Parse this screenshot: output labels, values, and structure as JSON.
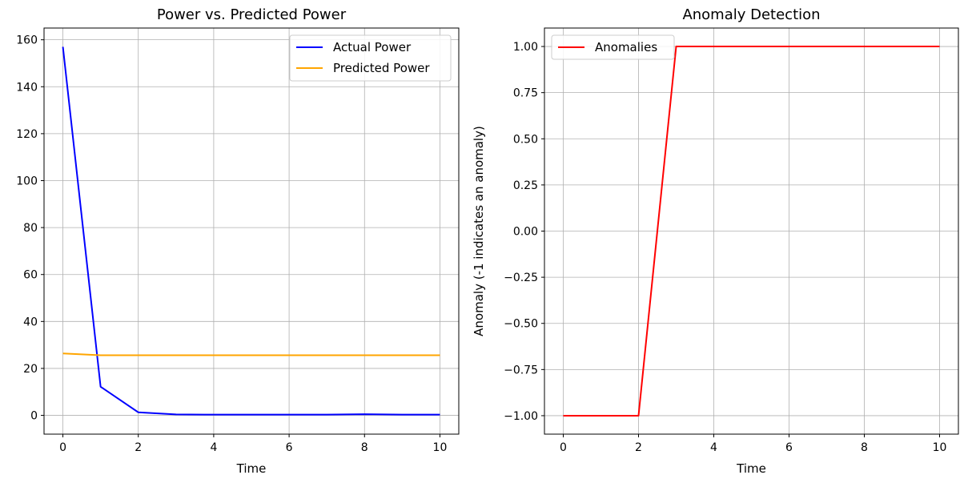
{
  "chart_data": [
    {
      "type": "line",
      "title": "Power vs. Predicted Power",
      "xlabel": "Time",
      "ylabel": "",
      "xlim": [
        -0.5,
        10.5
      ],
      "ylim": [
        -8,
        165
      ],
      "xticks": [
        0,
        2,
        4,
        6,
        8,
        10
      ],
      "xtick_labels": [
        "0",
        "2",
        "4",
        "6",
        "8",
        "10"
      ],
      "yticks": [
        0,
        20,
        40,
        60,
        80,
        100,
        120,
        140,
        160
      ],
      "ytick_labels": [
        "0",
        "20",
        "40",
        "60",
        "80",
        "100",
        "120",
        "140",
        "160"
      ],
      "grid": true,
      "legend_position": "top-right",
      "x": [
        0,
        1,
        2,
        3,
        4,
        5,
        6,
        7,
        8,
        9,
        10
      ],
      "series": [
        {
          "name": "Actual Power",
          "color": "#0000ff",
          "values": [
            157,
            12.2,
            1.3,
            0.4,
            0.3,
            0.3,
            0.3,
            0.3,
            0.5,
            0.3,
            0.3
          ]
        },
        {
          "name": "Predicted Power",
          "color": "#ffa500",
          "values": [
            26.4,
            25.6,
            25.6,
            25.6,
            25.6,
            25.6,
            25.6,
            25.6,
            25.6,
            25.6,
            25.6
          ]
        }
      ]
    },
    {
      "type": "line",
      "title": "Anomaly Detection",
      "xlabel": "Time",
      "ylabel": "Anomaly (-1 indicates an anomaly)",
      "xlim": [
        -0.5,
        10.5
      ],
      "ylim": [
        -1.1,
        1.1
      ],
      "xticks": [
        0,
        2,
        4,
        6,
        8,
        10
      ],
      "xtick_labels": [
        "0",
        "2",
        "4",
        "6",
        "8",
        "10"
      ],
      "yticks": [
        -1.0,
        -0.75,
        -0.5,
        -0.25,
        0.0,
        0.25,
        0.5,
        0.75,
        1.0
      ],
      "ytick_labels": [
        "−1.00",
        "−0.75",
        "−0.50",
        "−0.25",
        "0.00",
        "0.25",
        "0.50",
        "0.75",
        "1.00"
      ],
      "grid": true,
      "legend_position": "top-left",
      "x": [
        0,
        1,
        2,
        3,
        4,
        5,
        6,
        7,
        8,
        9,
        10
      ],
      "series": [
        {
          "name": "Anomalies",
          "color": "#ff0000",
          "values": [
            -1,
            -1,
            -1,
            1,
            1,
            1,
            1,
            1,
            1,
            1,
            1
          ]
        }
      ]
    }
  ]
}
